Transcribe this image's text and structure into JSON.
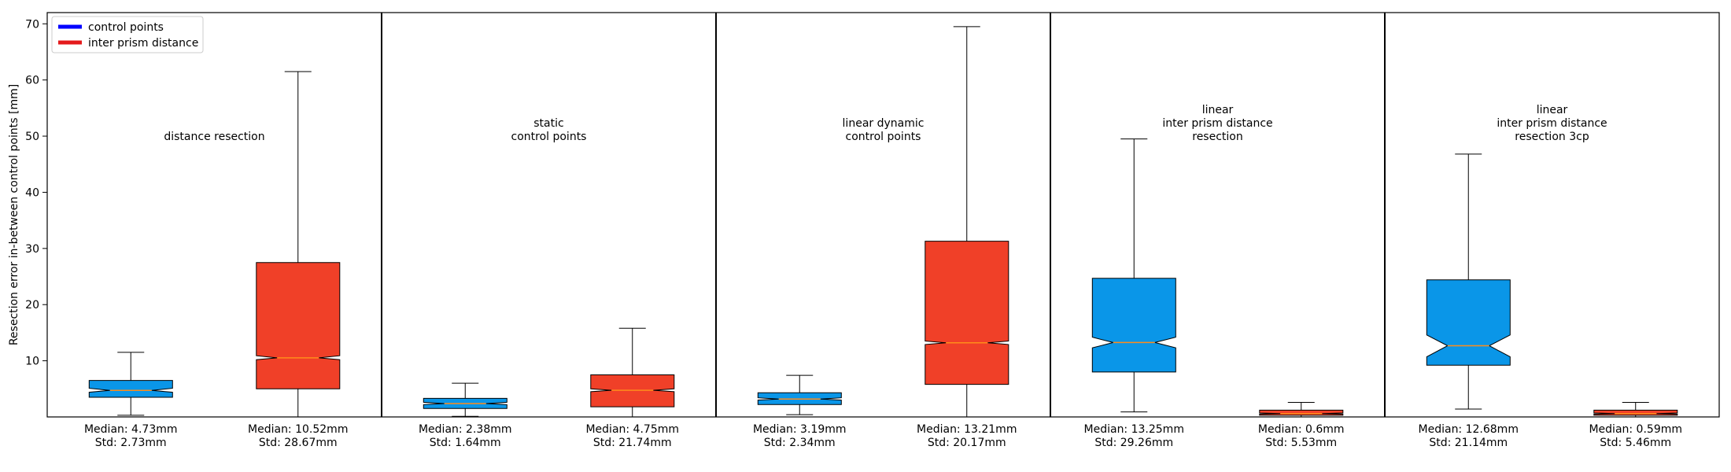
{
  "chart_data": {
    "type": "boxplot",
    "ylabel": "Resection error in-between control points [mm]",
    "ylim": [
      0,
      72
    ],
    "yticks": [
      10,
      20,
      30,
      40,
      50,
      60,
      70
    ],
    "grid": false,
    "legend_position": "top-left",
    "legend": [
      {
        "label": "control points",
        "color": "#0000ff"
      },
      {
        "label": "inter prism distance",
        "color": "#e41a1c"
      }
    ],
    "groups": [
      {
        "label": "distance resection",
        "boxes": [
          {
            "series": "control points",
            "color": "#0a96e8",
            "median": 4.73,
            "q1": 3.5,
            "q3": 6.5,
            "whisker_low": 0.3,
            "whisker_high": 11.5,
            "notch_low": 4.4,
            "notch_high": 5.1,
            "label_median": "Median: 4.73mm",
            "label_std": "Std: 2.73mm"
          },
          {
            "series": "inter prism distance",
            "color": "#f04028",
            "median": 10.52,
            "q1": 5.0,
            "q3": 27.5,
            "whisker_low": 0.0,
            "whisker_high": 61.5,
            "notch_low": 10.2,
            "notch_high": 10.9,
            "label_median": "Median: 10.52mm",
            "label_std": "Std: 28.67mm"
          }
        ]
      },
      {
        "label": "static\ncontrol points",
        "boxes": [
          {
            "series": "control points",
            "color": "#0a96e8",
            "median": 2.38,
            "q1": 1.5,
            "q3": 3.3,
            "whisker_low": 0.1,
            "whisker_high": 6.0,
            "notch_low": 2.2,
            "notch_high": 2.6,
            "label_median": "Median: 2.38mm",
            "label_std": "Std: 1.64mm"
          },
          {
            "series": "inter prism distance",
            "color": "#f04028",
            "median": 4.75,
            "q1": 1.8,
            "q3": 7.5,
            "whisker_low": 0.0,
            "whisker_high": 15.8,
            "notch_low": 4.5,
            "notch_high": 5.0,
            "label_median": "Median: 4.75mm",
            "label_std": "Std: 21.74mm"
          }
        ]
      },
      {
        "label": "linear dynamic\ncontrol points",
        "boxes": [
          {
            "series": "control points",
            "color": "#0a96e8",
            "median": 3.19,
            "q1": 2.2,
            "q3": 4.3,
            "whisker_low": 0.4,
            "whisker_high": 7.4,
            "notch_low": 3.0,
            "notch_high": 3.4,
            "label_median": "Median: 3.19mm",
            "label_std": "Std: 2.34mm"
          },
          {
            "series": "inter prism distance",
            "color": "#f04028",
            "median": 13.21,
            "q1": 5.8,
            "q3": 31.3,
            "whisker_low": 0.0,
            "whisker_high": 69.5,
            "notch_low": 12.9,
            "notch_high": 13.5,
            "label_median": "Median: 13.21mm",
            "label_std": "Std: 20.17mm"
          }
        ]
      },
      {
        "label": "linear\ninter prism distance\nresection",
        "boxes": [
          {
            "series": "control points",
            "color": "#0a96e8",
            "median": 13.25,
            "q1": 8.0,
            "q3": 24.7,
            "whisker_low": 0.9,
            "whisker_high": 49.5,
            "notch_low": 12.3,
            "notch_high": 14.2,
            "label_median": "Median: 13.25mm",
            "label_std": "Std: 29.26mm"
          },
          {
            "series": "inter prism distance",
            "color": "#f04028",
            "median": 0.6,
            "q1": 0.3,
            "q3": 1.2,
            "whisker_low": 0.0,
            "whisker_high": 2.6,
            "notch_low": 0.5,
            "notch_high": 0.7,
            "label_median": "Median: 0.6mm",
            "label_std": "Std: 5.53mm"
          }
        ]
      },
      {
        "label": "linear\ninter prism distance\nresection 3cp",
        "boxes": [
          {
            "series": "control points",
            "color": "#0a96e8",
            "median": 12.68,
            "q1": 9.2,
            "q3": 24.4,
            "whisker_low": 1.4,
            "whisker_high": 46.8,
            "notch_low": 10.7,
            "notch_high": 14.6,
            "label_median": "Median: 12.68mm",
            "label_std": "Std: 21.14mm"
          },
          {
            "series": "inter prism distance",
            "color": "#f04028",
            "median": 0.59,
            "q1": 0.3,
            "q3": 1.2,
            "whisker_low": 0.0,
            "whisker_high": 2.6,
            "notch_low": 0.5,
            "notch_high": 0.7,
            "label_median": "Median: 0.59mm",
            "label_std": "Std: 5.46mm"
          }
        ]
      }
    ]
  }
}
